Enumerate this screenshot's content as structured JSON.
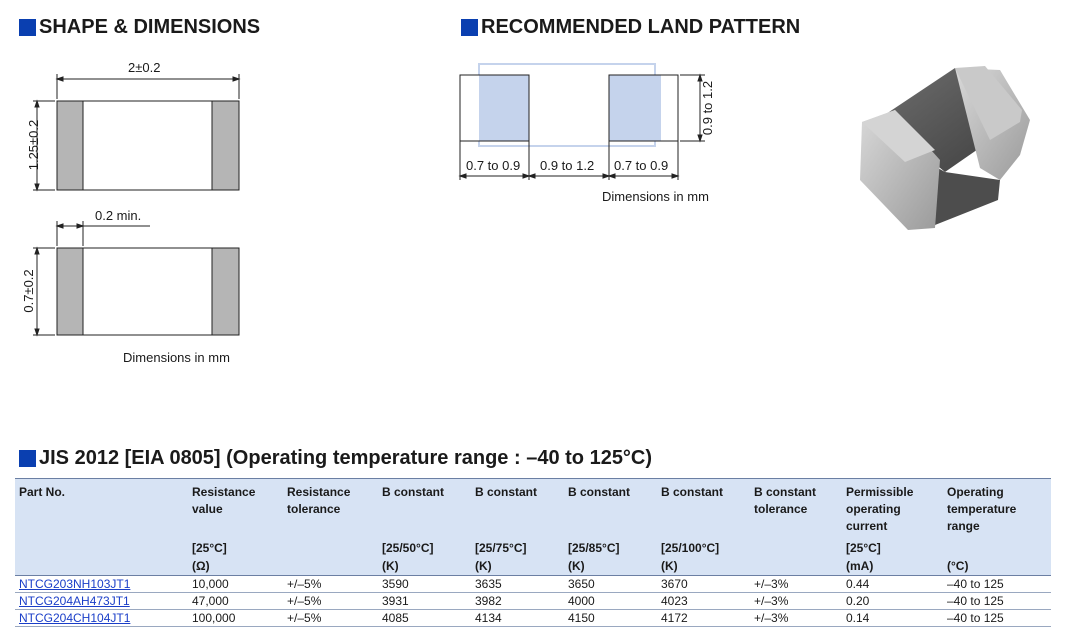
{
  "shape": {
    "title": "SHAPE & DIMENSIONS",
    "width_dim": "2±0.2",
    "height_dim": "1.25±0.2",
    "electrode_dim": "0.2 min.",
    "thickness_dim": "0.7±0.2",
    "units_note": "Dimensions in mm"
  },
  "land": {
    "title": "RECOMMENDED LAND PATTERN",
    "pad_width_left": "0.7 to 0.9",
    "gap": "0.9 to 1.2",
    "pad_width_right": "0.7 to 0.9",
    "pad_height": "0.9 to 1.2",
    "units_note": "Dimensions in mm"
  },
  "series": {
    "title": "JIS 2012 [EIA 0805] (Operating temperature range : –40 to 125°C)"
  },
  "table": {
    "headers": [
      "Part No.",
      "Resistance value",
      "Resistance tolerance",
      "B constant",
      "B constant",
      "B constant",
      "B constant",
      "B constant tolerance",
      "Permissible operating current",
      "Operating temperature range"
    ],
    "conditions": [
      "",
      "[25°C]",
      "",
      "[25/50°C]",
      "[25/75°C]",
      "[25/85°C]",
      "[25/100°C]",
      "",
      "[25°C]",
      ""
    ],
    "units": [
      "",
      "(Ω)",
      "",
      "(K)",
      "(K)",
      "(K)",
      "(K)",
      "",
      "(mA)",
      "(°C)"
    ],
    "rows": [
      [
        "NTCG203NH103JT1",
        "10,000",
        "+/–5%",
        "3590",
        "3635",
        "3650",
        "3670",
        "+/–3%",
        "0.44",
        "–40 to 125"
      ],
      [
        "NTCG204AH473JT1",
        "47,000",
        "+/–5%",
        "3931",
        "3982",
        "4000",
        "4023",
        "+/–3%",
        "0.20",
        "–40 to 125"
      ],
      [
        "NTCG204CH104JT1",
        "100,000",
        "+/–5%",
        "4085",
        "4134",
        "4150",
        "4172",
        "+/–3%",
        "0.14",
        "–40 to 125"
      ]
    ]
  },
  "colors": {
    "accent": "#0a3fb0",
    "header_bg": "#d7e3f4",
    "link": "#1a3ec8",
    "pad_fill": "#c5d3ec"
  }
}
